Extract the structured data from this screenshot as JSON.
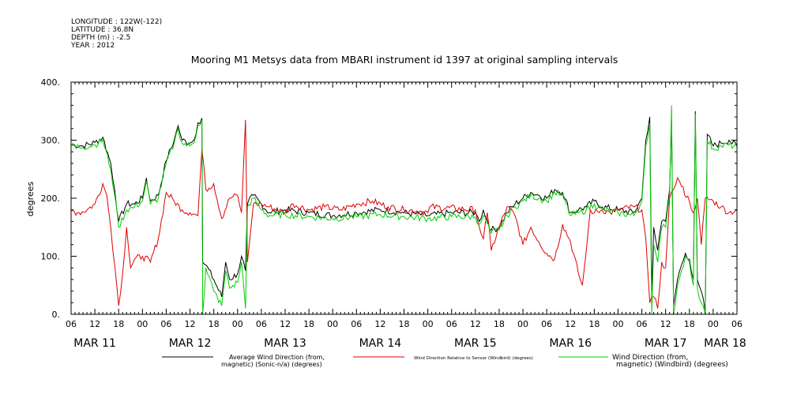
{
  "meta": {
    "longitude": "LONGITUDE : 122W(-122)",
    "latitude": "LATITUDE : 36.8N",
    "depth": "DEPTH (m) : -2.5",
    "year": "YEAR : 2012"
  },
  "chart_data": {
    "type": "line",
    "title": "Mooring M1 Metsys data from MBARI instrument id 1397 at original sampling intervals",
    "ylabel": "degrees",
    "ylim": [
      0,
      400
    ],
    "yticks": [
      "0.",
      "100.",
      "200.",
      "300.",
      "400."
    ],
    "xlim": [
      6,
      174
    ],
    "x_unit": "hours since MAR 11 00:00",
    "x_tick_labels": [
      "06",
      "12",
      "18",
      "00",
      "06",
      "12",
      "18",
      "00",
      "06",
      "12",
      "18",
      "00",
      "06",
      "12",
      "18",
      "00",
      "06",
      "12",
      "18",
      "00",
      "06",
      "12",
      "18",
      "00",
      "06",
      "12",
      "18",
      "00",
      "06"
    ],
    "date_labels": [
      "MAR 11",
      "MAR 12",
      "MAR 13",
      "MAR 14",
      "MAR 15",
      "MAR 16",
      "MAR 17",
      "MAR 18"
    ],
    "grid": false,
    "legend_position": "bottom",
    "series": [
      {
        "name_lines": [
          "Average Wind Direction (from,",
          "magnetic) (Sonic-n/a) (degrees)"
        ],
        "color": "#000000",
        "points": [
          [
            6,
            292
          ],
          [
            9,
            290
          ],
          [
            12,
            296
          ],
          [
            14,
            305
          ],
          [
            16,
            260
          ],
          [
            17,
            215
          ],
          [
            18,
            160
          ],
          [
            20,
            190
          ],
          [
            22,
            190
          ],
          [
            24,
            200
          ],
          [
            25,
            235
          ],
          [
            26,
            195
          ],
          [
            28,
            205
          ],
          [
            30,
            265
          ],
          [
            32,
            300
          ],
          [
            33,
            325
          ],
          [
            34,
            300
          ],
          [
            36,
            295
          ],
          [
            37,
            300
          ],
          [
            38,
            330
          ],
          [
            39,
            338
          ],
          [
            39.2,
            90
          ],
          [
            40,
            85
          ],
          [
            42,
            60
          ],
          [
            44,
            30
          ],
          [
            45,
            90
          ],
          [
            46,
            60
          ],
          [
            48,
            70
          ],
          [
            49,
            100
          ],
          [
            50,
            75
          ],
          [
            50.5,
            190
          ],
          [
            52,
            205
          ],
          [
            54,
            190
          ],
          [
            56,
            175
          ],
          [
            60,
            180
          ],
          [
            66,
            175
          ],
          [
            72,
            170
          ],
          [
            78,
            175
          ],
          [
            84,
            180
          ],
          [
            90,
            175
          ],
          [
            96,
            170
          ],
          [
            102,
            175
          ],
          [
            108,
            175
          ],
          [
            109,
            160
          ],
          [
            110,
            180
          ],
          [
            112,
            145
          ],
          [
            114,
            150
          ],
          [
            116,
            175
          ],
          [
            118,
            190
          ],
          [
            120,
            200
          ],
          [
            122,
            210
          ],
          [
            124,
            205
          ],
          [
            126,
            200
          ],
          [
            128,
            215
          ],
          [
            130,
            210
          ],
          [
            132,
            175
          ],
          [
            134,
            180
          ],
          [
            136,
            185
          ],
          [
            138,
            195
          ],
          [
            140,
            185
          ],
          [
            144,
            180
          ],
          [
            148,
            175
          ],
          [
            150,
            200
          ],
          [
            151,
            300
          ],
          [
            152,
            340
          ],
          [
            152.5,
            40
          ],
          [
            153,
            150
          ],
          [
            154,
            110
          ],
          [
            155,
            160
          ],
          [
            156,
            160
          ],
          [
            157,
            215
          ],
          [
            157.5,
            335
          ],
          [
            158,
            15
          ],
          [
            159,
            60
          ],
          [
            160,
            85
          ],
          [
            161,
            105
          ],
          [
            162,
            95
          ],
          [
            163,
            60
          ],
          [
            163.5,
            350
          ],
          [
            164,
            60
          ],
          [
            165,
            40
          ],
          [
            166,
            5
          ],
          [
            166.5,
            310
          ],
          [
            168,
            290
          ],
          [
            170,
            295
          ],
          [
            172,
            300
          ],
          [
            174,
            290
          ]
        ]
      },
      {
        "name_lines": [
          "Wind Direction Relative to Sensor (Windbird) (degrees)"
        ],
        "color": "#e00000",
        "points": [
          [
            6,
            178
          ],
          [
            8,
            175
          ],
          [
            10,
            180
          ],
          [
            12,
            190
          ],
          [
            14,
            225
          ],
          [
            15,
            205
          ],
          [
            16,
            150
          ],
          [
            17,
            85
          ],
          [
            18,
            15
          ],
          [
            19,
            70
          ],
          [
            20,
            150
          ],
          [
            21,
            80
          ],
          [
            22,
            95
          ],
          [
            24,
            100
          ],
          [
            26,
            90
          ],
          [
            28,
            130
          ],
          [
            30,
            210
          ],
          [
            32,
            195
          ],
          [
            34,
            180
          ],
          [
            36,
            175
          ],
          [
            38,
            170
          ],
          [
            39,
            285
          ],
          [
            40,
            215
          ],
          [
            42,
            225
          ],
          [
            44,
            165
          ],
          [
            46,
            200
          ],
          [
            48,
            205
          ],
          [
            49,
            175
          ],
          [
            50,
            335
          ],
          [
            50.5,
            90
          ],
          [
            52,
            190
          ],
          [
            54,
            190
          ],
          [
            56,
            185
          ],
          [
            58,
            180
          ],
          [
            60,
            175
          ],
          [
            62,
            190
          ],
          [
            66,
            180
          ],
          [
            70,
            185
          ],
          [
            74,
            180
          ],
          [
            78,
            190
          ],
          [
            82,
            195
          ],
          [
            86,
            185
          ],
          [
            90,
            180
          ],
          [
            94,
            178
          ],
          [
            96,
            175
          ],
          [
            96.5,
            185
          ],
          [
            108,
            180
          ],
          [
            109,
            150
          ],
          [
            110,
            130
          ],
          [
            111,
            175
          ],
          [
            112,
            110
          ],
          [
            114,
            150
          ],
          [
            116,
            185
          ],
          [
            118,
            170
          ],
          [
            120,
            120
          ],
          [
            122,
            150
          ],
          [
            124,
            125
          ],
          [
            126,
            105
          ],
          [
            128,
            95
          ],
          [
            130,
            155
          ],
          [
            132,
            125
          ],
          [
            134,
            70
          ],
          [
            135,
            50
          ],
          [
            136,
            110
          ],
          [
            137,
            180
          ],
          [
            138,
            175
          ],
          [
            140,
            180
          ],
          [
            142,
            175
          ],
          [
            144,
            180
          ],
          [
            148,
            185
          ],
          [
            150,
            180
          ],
          [
            151,
            130
          ],
          [
            152,
            20
          ],
          [
            153,
            30
          ],
          [
            154,
            10
          ],
          [
            155,
            90
          ],
          [
            156,
            80
          ],
          [
            157,
            200
          ],
          [
            158,
            215
          ],
          [
            159,
            235
          ],
          [
            160,
            220
          ],
          [
            162,
            195
          ],
          [
            163,
            175
          ],
          [
            164,
            200
          ],
          [
            165,
            120
          ],
          [
            166,
            200
          ],
          [
            168,
            195
          ],
          [
            170,
            185
          ],
          [
            172,
            175
          ],
          [
            174,
            180
          ]
        ]
      },
      {
        "name_lines": [
          "Wind Direction (from,",
          "magnetic) (Windbird) (degrees)"
        ],
        "color": "#00d000",
        "points": [
          [
            6,
            290
          ],
          [
            9,
            288
          ],
          [
            12,
            292
          ],
          [
            14,
            300
          ],
          [
            16,
            250
          ],
          [
            17,
            205
          ],
          [
            18,
            150
          ],
          [
            20,
            180
          ],
          [
            22,
            185
          ],
          [
            24,
            195
          ],
          [
            25,
            230
          ],
          [
            26,
            190
          ],
          [
            28,
            200
          ],
          [
            30,
            260
          ],
          [
            32,
            295
          ],
          [
            33,
            320
          ],
          [
            34,
            295
          ],
          [
            36,
            290
          ],
          [
            37,
            295
          ],
          [
            38,
            325
          ],
          [
            39,
            335
          ],
          [
            39.2,
            0
          ],
          [
            40,
            80
          ],
          [
            42,
            40
          ],
          [
            44,
            15
          ],
          [
            45,
            75
          ],
          [
            46,
            45
          ],
          [
            48,
            55
          ],
          [
            49,
            90
          ],
          [
            50,
            10
          ],
          [
            50.5,
            185
          ],
          [
            52,
            200
          ],
          [
            54,
            180
          ],
          [
            56,
            170
          ],
          [
            60,
            172
          ],
          [
            66,
            168
          ],
          [
            72,
            165
          ],
          [
            78,
            168
          ],
          [
            84,
            172
          ],
          [
            90,
            168
          ],
          [
            96,
            165
          ],
          [
            102,
            168
          ],
          [
            108,
            168
          ],
          [
            109,
            155
          ],
          [
            110,
            170
          ],
          [
            112,
            140
          ],
          [
            114,
            145
          ],
          [
            116,
            170
          ],
          [
            118,
            185
          ],
          [
            120,
            195
          ],
          [
            122,
            205
          ],
          [
            124,
            200
          ],
          [
            126,
            195
          ],
          [
            128,
            210
          ],
          [
            130,
            205
          ],
          [
            132,
            170
          ],
          [
            134,
            175
          ],
          [
            136,
            180
          ],
          [
            138,
            190
          ],
          [
            140,
            180
          ],
          [
            144,
            175
          ],
          [
            148,
            170
          ],
          [
            150,
            195
          ],
          [
            151,
            290
          ],
          [
            152,
            330
          ],
          [
            152.5,
            0
          ],
          [
            153,
            120
          ],
          [
            154,
            90
          ],
          [
            155,
            150
          ],
          [
            156,
            150
          ],
          [
            157,
            205
          ],
          [
            157.5,
            360
          ],
          [
            158,
            0
          ],
          [
            159,
            50
          ],
          [
            160,
            75
          ],
          [
            161,
            100
          ],
          [
            162,
            90
          ],
          [
            163,
            50
          ],
          [
            163.5,
            345
          ],
          [
            164,
            45
          ],
          [
            165,
            20
          ],
          [
            166,
            0
          ],
          [
            166.5,
            300
          ],
          [
            168,
            285
          ],
          [
            170,
            290
          ],
          [
            172,
            292
          ],
          [
            174,
            288
          ]
        ]
      }
    ]
  }
}
